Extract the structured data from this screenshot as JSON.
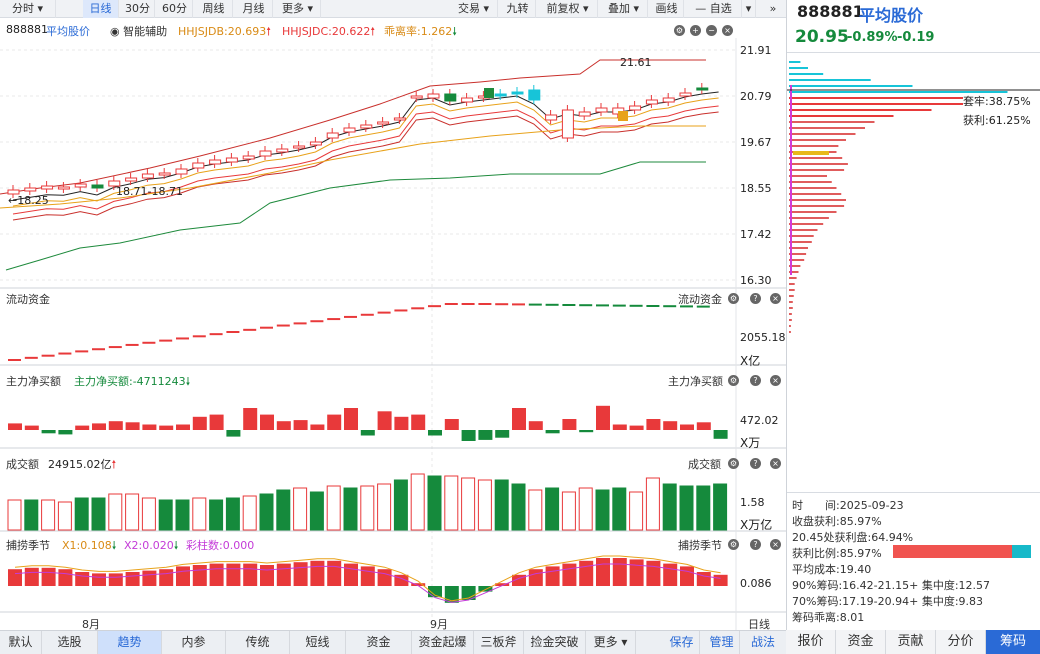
{
  "toolbar": {
    "left": [
      "分时",
      "日线",
      "30分",
      "60分",
      "周线",
      "月线",
      "更多"
    ],
    "right": [
      "交易",
      "九转",
      "前复权",
      "叠加",
      "画线",
      "自选"
    ]
  },
  "header": {
    "code": "888881",
    "name": "平均股价",
    "assist": "智能辅助",
    "hhjsjdb": "HHJSJDB:20.693",
    "hhjsjdc": "HHJSJDC:20.622",
    "guili": "乖离率:1.262"
  },
  "main_axis": [
    "21.91",
    "20.79",
    "19.67",
    "18.55",
    "17.42",
    "16.30"
  ],
  "annotations": {
    "high": "21.61",
    "low": "18.71-18.71",
    "start": "18.25"
  },
  "panels": {
    "flow": {
      "title": "流动资金",
      "value": "2055.18",
      "unit": "X亿"
    },
    "net": {
      "title": "主力净买额",
      "reading": "主力净买额:-4711243",
      "value": "472.02",
      "unit": "X万"
    },
    "vol": {
      "title": "成交额",
      "reading": "24915.02亿",
      "value": "1.58",
      "unit": "X万亿"
    },
    "season": {
      "title": "捕捞季节",
      "x1": "X1:0.108",
      "x2": "X2:0.020",
      "bar": "彩柱数:0.000",
      "value": "0.086"
    }
  },
  "months": [
    "8月",
    "9月"
  ],
  "period": "日线",
  "bottom_tabs": [
    "默认",
    "选股",
    "趋势",
    "内参",
    "传统",
    "短线",
    "资金",
    "资金起爆",
    "三板斧",
    "捡金突破",
    "更多"
  ],
  "bottom_right": [
    "保存",
    "管理",
    "战法"
  ],
  "right_panel": {
    "code": "888881",
    "name": "平均股价",
    "price": "20.95",
    "pct": "-0.89%",
    "change": "-0.19",
    "trapped": "套牢:38.75%",
    "profit": "获利:61.25%",
    "stats": [
      "时　　间:2025-09-23",
      "收盘获利:85.97%",
      "20.45处获利盘:64.94%",
      "获利比例:85.97%",
      "平均成本:19.40",
      "90%筹码:16.42-21.15+ 集中度:12.57",
      "70%筹码:17.19-20.94+ 集中度:9.83",
      "筹码乖离:8.01"
    ],
    "profit_ratio": 0.8597,
    "tabs": [
      "报价",
      "资金",
      "贡献",
      "分价",
      "筹码"
    ]
  },
  "colors": {
    "up": "#e8393a",
    "down": "#158a3c",
    "accent": "#2a6ad6",
    "cyan": "#17c4d8"
  }
}
